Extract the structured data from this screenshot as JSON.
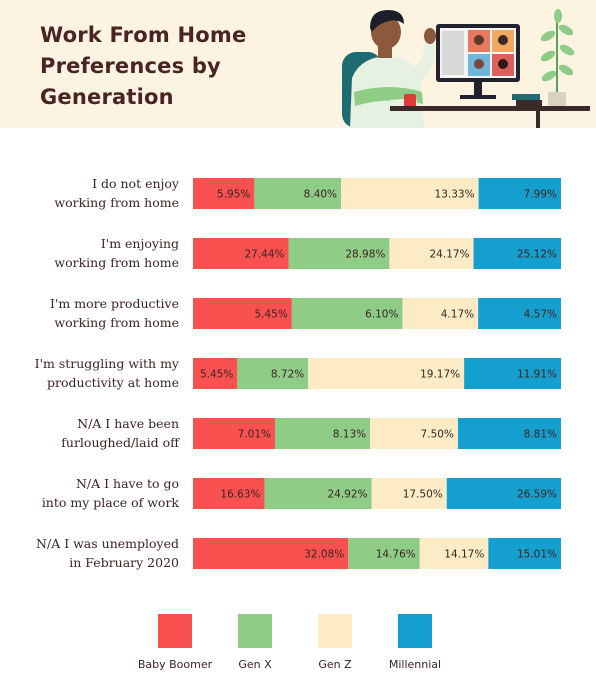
{
  "title_lines": [
    "Work From Home",
    "Preferences by",
    "Generation"
  ],
  "colors": {
    "baby_boomer": "#f9514f",
    "gen_x": "#8fcd87",
    "gen_z": "#fcebc4",
    "millennial": "#159fce",
    "header_background": "#fdf3e1",
    "title": "#4a2424"
  },
  "icons": [
    "person-at-desk-illustration",
    "video-call-monitor-icon",
    "potted-plant-icon",
    "coffee-mug-icon"
  ],
  "chart_data": {
    "type": "bar",
    "orientation": "horizontal",
    "stacked": true,
    "grid": false,
    "legend_position": "bottom",
    "categories": [
      [
        "I do not enjoy",
        "working from home"
      ],
      [
        "I'm enjoying",
        "working from home"
      ],
      [
        "I'm more productive",
        "working from home"
      ],
      [
        "I'm struggling with my",
        "productivity at home"
      ],
      [
        "N/A I have been",
        "furloughed/laid off"
      ],
      [
        "N/A I have to go",
        "into my place of work"
      ],
      [
        "N/A I was unemployed",
        "in February 2020"
      ]
    ],
    "series": [
      {
        "name": "Baby Boomer",
        "color": "#f9514f",
        "values": [
          5.95,
          27.44,
          5.45,
          5.45,
          7.01,
          16.63,
          32.08
        ]
      },
      {
        "name": "Gen X",
        "color": "#8fcd87",
        "values": [
          8.4,
          28.98,
          6.1,
          8.72,
          8.13,
          24.92,
          14.76
        ]
      },
      {
        "name": "Gen Z",
        "color": "#fcebc4",
        "values": [
          13.33,
          24.17,
          4.17,
          19.17,
          7.5,
          17.5,
          14.17
        ]
      },
      {
        "name": "Millennial",
        "color": "#159fce",
        "values": [
          7.99,
          25.12,
          4.57,
          11.91,
          8.81,
          26.59,
          15.01
        ]
      }
    ],
    "value_suffix": "%"
  }
}
